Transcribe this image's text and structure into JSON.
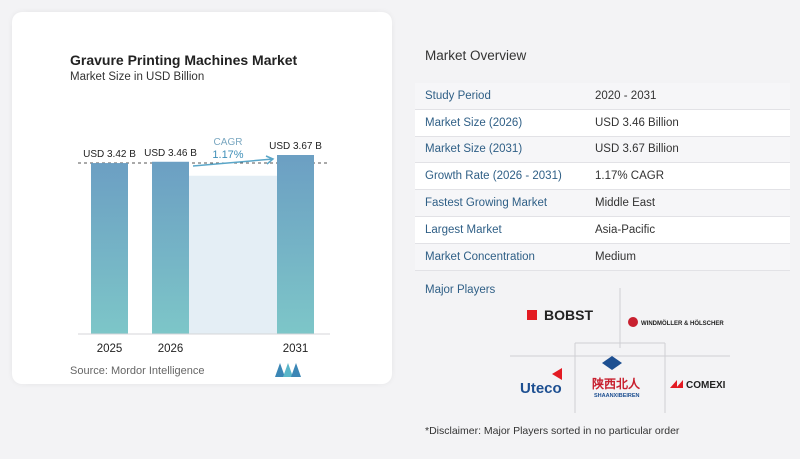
{
  "chart": {
    "title": "Gravure Printing Machines Market",
    "subtitle": "Market Size in USD Billion",
    "cagr_label": "CAGR",
    "cagr_value": "1.17%",
    "source": "Source:  Mordor Intelligence",
    "colors": {
      "bar": "#6ea3c4",
      "bar_bottom": "#7cc3c8",
      "highlight": "#e4eef5",
      "accent": "#5aa6c8"
    }
  },
  "chart_data": {
    "type": "bar",
    "categories": [
      "2025",
      "2026",
      "2031"
    ],
    "values": [
      3.42,
      3.46,
      3.67
    ],
    "value_labels": [
      "USD 3.42 B",
      "USD 3.46 B",
      "USD 3.67 B"
    ]
  },
  "overview": {
    "title": "Market Overview",
    "rows": [
      {
        "label": "Study Period",
        "value": "2020 - 2031"
      },
      {
        "label": "Market Size (2026)",
        "value": "USD 3.46 Billion"
      },
      {
        "label": "Market Size (2031)",
        "value": "USD 3.67 Billion"
      },
      {
        "label": "Growth Rate (2026 - 2031)",
        "value": "1.17% CAGR"
      },
      {
        "label": "Fastest Growing Market",
        "value": "Middle East"
      },
      {
        "label": "Largest Market",
        "value": "Asia-Pacific"
      },
      {
        "label": "Market Concentration",
        "value": "Medium"
      }
    ]
  },
  "players": {
    "title": "Major Players",
    "logos": [
      "BOBST",
      "WINDMÖLLER & HÖLSCHER",
      "Uteco",
      "陕西北人",
      "SHAANXIBEIREN",
      "COMEXI"
    ]
  },
  "disclaimer": "*Disclaimer: Major Players sorted in no particular order"
}
